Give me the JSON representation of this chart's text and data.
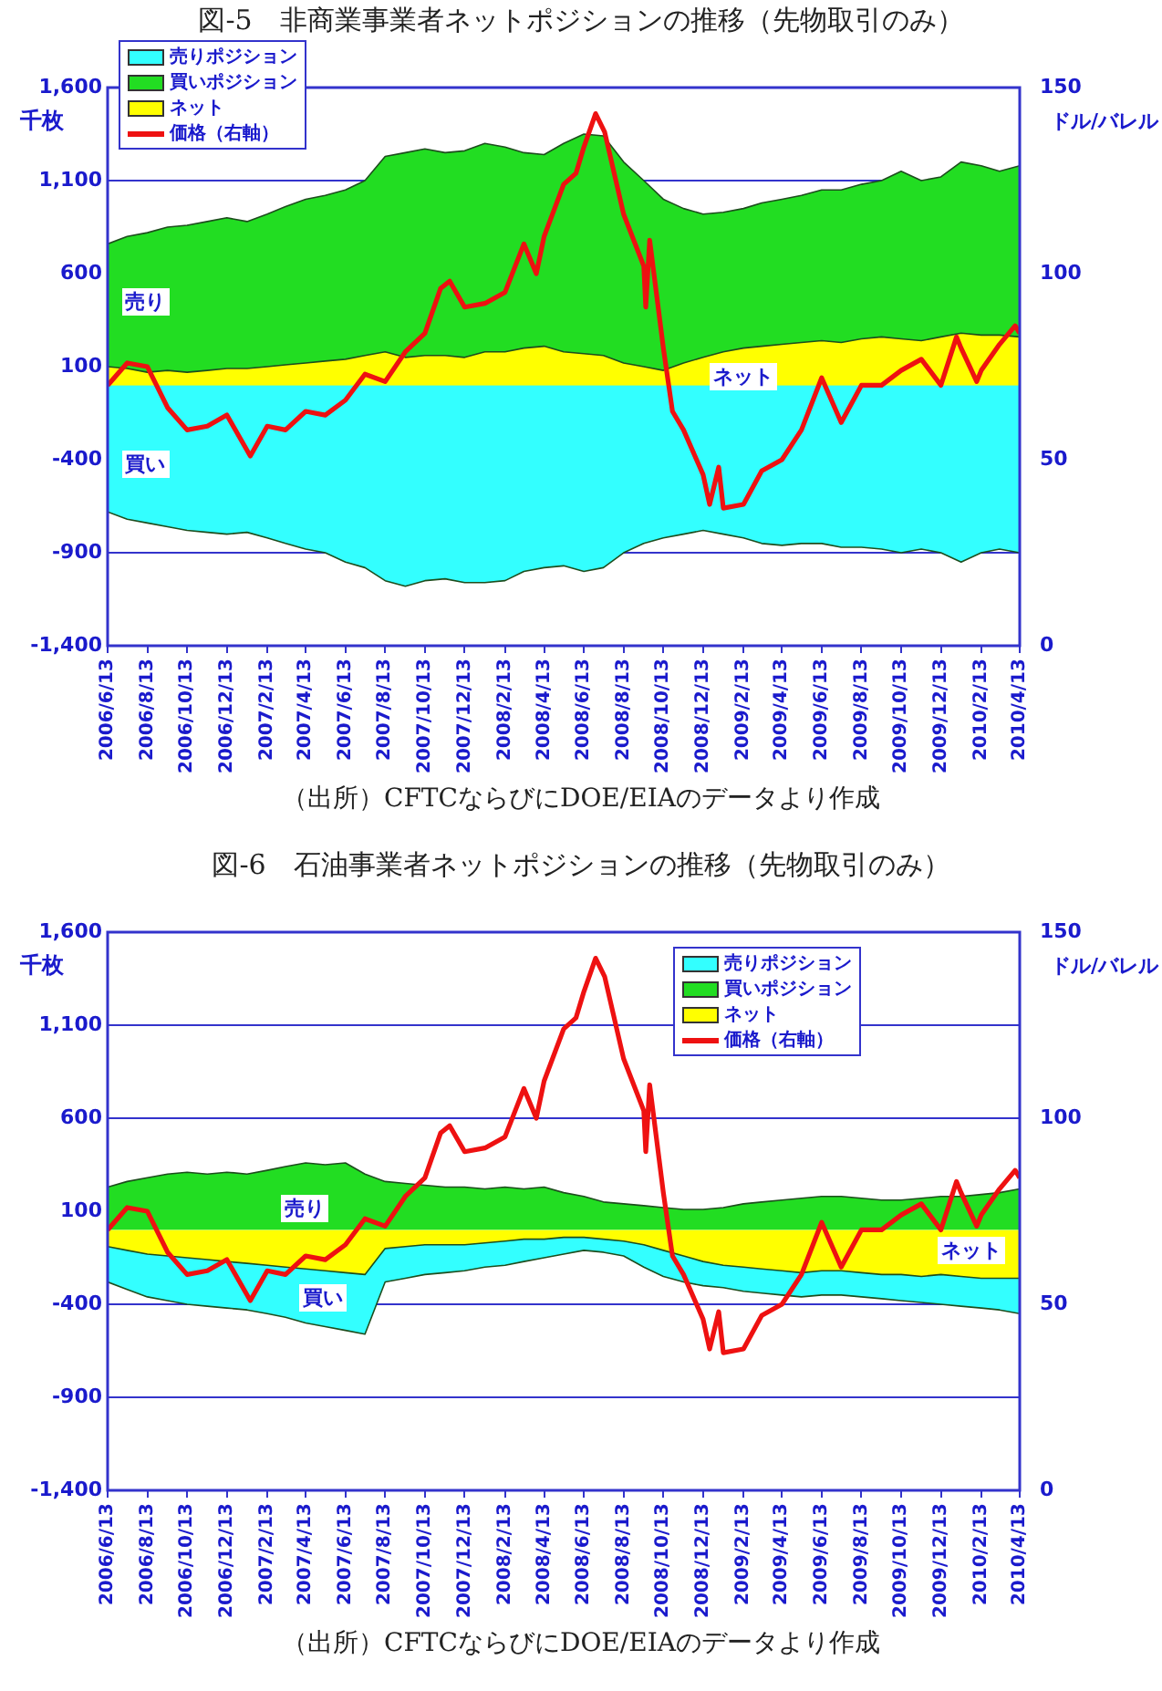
{
  "chart_data": [
    {
      "type": "area",
      "title": "図-5　非商業事業者ネットポジションの推移（先物取引のみ）",
      "ylabel": "千枚",
      "y2label": "ドル/バレル",
      "x": [
        "2006-06-13",
        "2006-07-13",
        "2006-08-13",
        "2006-09-13",
        "2006-10-13",
        "2006-11-13",
        "2006-12-13",
        "2007-01-13",
        "2007-02-13",
        "2007-03-13",
        "2007-04-13",
        "2007-05-13",
        "2007-06-13",
        "2007-07-13",
        "2007-08-13",
        "2007-09-13",
        "2007-10-13",
        "2007-11-13",
        "2007-12-13",
        "2008-01-13",
        "2008-02-13",
        "2008-03-13",
        "2008-04-13",
        "2008-05-13",
        "2008-06-13",
        "2008-07-13",
        "2008-08-13",
        "2008-09-13",
        "2008-10-13",
        "2008-11-13",
        "2008-12-13",
        "2009-01-13",
        "2009-02-13",
        "2009-03-13",
        "2009-04-13",
        "2009-05-13",
        "2009-06-13",
        "2009-07-13",
        "2009-08-13",
        "2009-09-13",
        "2009-10-13",
        "2009-11-13",
        "2009-12-13",
        "2010-01-13",
        "2010-02-13",
        "2010-03-13",
        "2010-04-13"
      ],
      "series": [
        {
          "name": "買いポジション",
          "color": "#22dd22",
          "values": [
            760,
            800,
            820,
            850,
            860,
            880,
            900,
            880,
            920,
            960,
            1000,
            1020,
            1050,
            1100,
            1230,
            1250,
            1270,
            1250,
            1260,
            1300,
            1280,
            1250,
            1240,
            1300,
            1350,
            1340,
            1200,
            1100,
            1000,
            950,
            920,
            930,
            950,
            980,
            1000,
            1020,
            1050,
            1050,
            1080,
            1100,
            1150,
            1100,
            1120,
            1200,
            1180,
            1150,
            1180
          ]
        },
        {
          "name": "売りポジション",
          "color": "#33ffff",
          "values": [
            -680,
            -720,
            -740,
            -760,
            -780,
            -790,
            -800,
            -790,
            -820,
            -850,
            -880,
            -900,
            -950,
            -980,
            -1050,
            -1080,
            -1050,
            -1040,
            -1060,
            -1060,
            -1050,
            -1000,
            -980,
            -970,
            -1000,
            -980,
            -900,
            -850,
            -820,
            -800,
            -780,
            -800,
            -820,
            -850,
            -860,
            -850,
            -850,
            -870,
            -870,
            -880,
            -900,
            -880,
            -900,
            -950,
            -900,
            -880,
            -900
          ]
        },
        {
          "name": "ネット",
          "color": "#ffff00",
          "values": [
            100,
            90,
            70,
            80,
            70,
            80,
            90,
            90,
            100,
            110,
            120,
            130,
            140,
            160,
            180,
            150,
            160,
            160,
            150,
            180,
            180,
            200,
            210,
            180,
            170,
            160,
            120,
            100,
            80,
            120,
            150,
            180,
            200,
            210,
            220,
            230,
            240,
            230,
            250,
            260,
            250,
            240,
            260,
            280,
            270,
            270,
            260
          ]
        },
        {
          "name": "価格（右軸）",
          "type": "line",
          "axis": "y2",
          "color": "#ee1111",
          "x": [
            "2006-06-13",
            "2006-07-13",
            "2006-08-13",
            "2006-09-13",
            "2006-10-13",
            "2006-11-13",
            "2006-12-13",
            "2007-01-18",
            "2007-02-13",
            "2007-03-13",
            "2007-04-13",
            "2007-05-13",
            "2007-06-13",
            "2007-07-13",
            "2007-08-13",
            "2007-09-13",
            "2007-10-13",
            "2007-11-06",
            "2007-11-20",
            "2007-12-13",
            "2008-01-13",
            "2008-02-13",
            "2008-03-13",
            "2008-04-01",
            "2008-04-13",
            "2008-05-13",
            "2008-06-01",
            "2008-06-13",
            "2008-07-01",
            "2008-07-15",
            "2008-08-13",
            "2008-09-13",
            "2008-09-16",
            "2008-09-22",
            "2008-10-13",
            "2008-10-27",
            "2008-11-13",
            "2008-12-13",
            "2008-12-23",
            "2009-01-06",
            "2009-01-13",
            "2009-02-13",
            "2009-03-13",
            "2009-04-13",
            "2009-05-13",
            "2009-06-13",
            "2009-07-13",
            "2009-08-13",
            "2009-09-13",
            "2009-10-13",
            "2009-11-13",
            "2009-12-13",
            "2010-01-06",
            "2010-01-13",
            "2010-02-06",
            "2010-02-13",
            "2010-03-13",
            "2010-04-06",
            "2010-04-13"
          ],
          "values": [
            70,
            76,
            75,
            64,
            58,
            59,
            62,
            51,
            59,
            58,
            63,
            62,
            66,
            73,
            71,
            79,
            84,
            96,
            98,
            91,
            92,
            95,
            108,
            100,
            110,
            124,
            127,
            134,
            143,
            138,
            116,
            102,
            91,
            109,
            80,
            63,
            58,
            46,
            38,
            48,
            37,
            38,
            47,
            50,
            58,
            72,
            60,
            70,
            70,
            74,
            77,
            70,
            83,
            80,
            71,
            74,
            81,
            86,
            84
          ]
        }
      ],
      "xlim": [
        "2006-06-13",
        "2010-04-13"
      ],
      "xticks": [
        {
          "value": "2006-06-13",
          "label": "2006/6/13"
        },
        {
          "value": "2006-08-13",
          "label": "2006/8/13"
        },
        {
          "value": "2006-10-13",
          "label": "2006/10/13"
        },
        {
          "value": "2006-12-13",
          "label": "2006/12/13"
        },
        {
          "value": "2007-02-13",
          "label": "2007/2/13"
        },
        {
          "value": "2007-04-13",
          "label": "2007/4/13"
        },
        {
          "value": "2007-06-13",
          "label": "2007/6/13"
        },
        {
          "value": "2007-08-13",
          "label": "2007/8/13"
        },
        {
          "value": "2007-10-13",
          "label": "2007/10/13"
        },
        {
          "value": "2007-12-13",
          "label": "2007/12/13"
        },
        {
          "value": "2008-02-13",
          "label": "2008/2/13"
        },
        {
          "value": "2008-04-13",
          "label": "2008/4/13"
        },
        {
          "value": "2008-06-13",
          "label": "2008/6/13"
        },
        {
          "value": "2008-08-13",
          "label": "2008/8/13"
        },
        {
          "value": "2008-10-13",
          "label": "2008/10/13"
        },
        {
          "value": "2008-12-13",
          "label": "2008/12/13"
        },
        {
          "value": "2009-02-13",
          "label": "2009/2/13"
        },
        {
          "value": "2009-04-13",
          "label": "2009/4/13"
        },
        {
          "value": "2009-06-13",
          "label": "2009/6/13"
        },
        {
          "value": "2009-08-13",
          "label": "2009/8/13"
        },
        {
          "value": "2009-10-13",
          "label": "2009/10/13"
        },
        {
          "value": "2009-12-13",
          "label": "2009/12/13"
        },
        {
          "value": "2010-02-13",
          "label": "2010/2/13"
        },
        {
          "value": "2010-04-13",
          "label": "2010/4/13"
        }
      ],
      "ylim": [
        -1400,
        1600
      ],
      "yticks": [
        {
          "value": -1400,
          "label": "-1,400"
        },
        {
          "value": -900,
          "label": "-900"
        },
        {
          "value": -400,
          "label": "-400"
        },
        {
          "value": 100,
          "label": "100"
        },
        {
          "value": 600,
          "label": "600"
        },
        {
          "value": 1100,
          "label": "1,100"
        },
        {
          "value": 1600,
          "label": "1,600"
        }
      ],
      "y2lim": [
        0,
        150
      ],
      "y2ticks": [
        0,
        50,
        100,
        150
      ],
      "grid": "y",
      "legend": "top left",
      "marker": "none",
      "line_style": "solid",
      "annotations": [
        "売り",
        "買い",
        "ネット",
        "（出所）CFTCならびにDOE/EIAのデータより作成"
      ]
    },
    {
      "type": "area",
      "title": "図-6　石油事業者ネットポジションの推移（先物取引のみ）",
      "ylabel": "千枚",
      "y2label": "ドル/バレル",
      "x": [
        "2006-06-13",
        "2006-07-13",
        "2006-08-13",
        "2006-09-13",
        "2006-10-13",
        "2006-11-13",
        "2006-12-13",
        "2007-01-13",
        "2007-02-13",
        "2007-03-13",
        "2007-04-13",
        "2007-05-13",
        "2007-06-13",
        "2007-07-13",
        "2007-08-13",
        "2007-09-13",
        "2007-10-13",
        "2007-11-13",
        "2007-12-13",
        "2008-01-13",
        "2008-02-13",
        "2008-03-13",
        "2008-04-13",
        "2008-05-13",
        "2008-06-13",
        "2008-07-13",
        "2008-08-13",
        "2008-09-13",
        "2008-10-13",
        "2008-11-13",
        "2008-12-13",
        "2009-01-13",
        "2009-02-13",
        "2009-03-13",
        "2009-04-13",
        "2009-05-13",
        "2009-06-13",
        "2009-07-13",
        "2009-08-13",
        "2009-09-13",
        "2009-10-13",
        "2009-11-13",
        "2009-12-13",
        "2010-01-13",
        "2010-02-13",
        "2010-03-13",
        "2010-04-13"
      ],
      "series": [
        {
          "name": "買いポジション",
          "color": "#22dd22",
          "values": [
            230,
            260,
            280,
            300,
            310,
            300,
            310,
            300,
            320,
            340,
            360,
            350,
            360,
            300,
            260,
            250,
            240,
            230,
            230,
            220,
            230,
            220,
            230,
            200,
            180,
            150,
            140,
            130,
            120,
            110,
            110,
            120,
            140,
            150,
            160,
            170,
            180,
            180,
            170,
            160,
            160,
            170,
            180,
            180,
            190,
            200,
            220
          ]
        },
        {
          "name": "売りポジション",
          "color": "#33ffff",
          "values": [
            -280,
            -320,
            -360,
            -380,
            -400,
            -410,
            -420,
            -430,
            -450,
            -470,
            -500,
            -520,
            -540,
            -560,
            -280,
            -260,
            -240,
            -230,
            -220,
            -200,
            -190,
            -170,
            -150,
            -130,
            -110,
            -120,
            -140,
            -200,
            -250,
            -280,
            -300,
            -310,
            -330,
            -340,
            -350,
            -360,
            -350,
            -350,
            -360,
            -370,
            -380,
            -390,
            -400,
            -410,
            -420,
            -430,
            -450
          ]
        },
        {
          "name": "ネット",
          "color": "#ffff00",
          "values": [
            -90,
            -110,
            -130,
            -140,
            -150,
            -160,
            -170,
            -180,
            -190,
            -200,
            -210,
            -220,
            -230,
            -240,
            -100,
            -90,
            -80,
            -80,
            -80,
            -70,
            -60,
            -50,
            -50,
            -40,
            -40,
            -50,
            -60,
            -80,
            -110,
            -140,
            -170,
            -190,
            -200,
            -210,
            -220,
            -230,
            -220,
            -220,
            -230,
            -240,
            -240,
            -250,
            -240,
            -250,
            -260,
            -260,
            -260
          ]
        },
        {
          "name": "価格（右軸）",
          "type": "line",
          "axis": "y2",
          "color": "#ee1111",
          "x": [
            "2006-06-13",
            "2006-07-13",
            "2006-08-13",
            "2006-09-13",
            "2006-10-13",
            "2006-11-13",
            "2006-12-13",
            "2007-01-18",
            "2007-02-13",
            "2007-03-13",
            "2007-04-13",
            "2007-05-13",
            "2007-06-13",
            "2007-07-13",
            "2007-08-13",
            "2007-09-13",
            "2007-10-13",
            "2007-11-06",
            "2007-11-20",
            "2007-12-13",
            "2008-01-13",
            "2008-02-13",
            "2008-03-13",
            "2008-04-01",
            "2008-04-13",
            "2008-05-13",
            "2008-06-01",
            "2008-06-13",
            "2008-07-01",
            "2008-07-15",
            "2008-08-13",
            "2008-09-13",
            "2008-09-16",
            "2008-09-22",
            "2008-10-13",
            "2008-10-27",
            "2008-11-13",
            "2008-12-13",
            "2008-12-23",
            "2009-01-06",
            "2009-01-13",
            "2009-02-13",
            "2009-03-13",
            "2009-04-13",
            "2009-05-13",
            "2009-06-13",
            "2009-07-13",
            "2009-08-13",
            "2009-09-13",
            "2009-10-13",
            "2009-11-13",
            "2009-12-13",
            "2010-01-06",
            "2010-01-13",
            "2010-02-06",
            "2010-02-13",
            "2010-03-13",
            "2010-04-06",
            "2010-04-13"
          ],
          "values": [
            70,
            76,
            75,
            64,
            58,
            59,
            62,
            51,
            59,
            58,
            63,
            62,
            66,
            73,
            71,
            79,
            84,
            96,
            98,
            91,
            92,
            95,
            108,
            100,
            110,
            124,
            127,
            134,
            143,
            138,
            116,
            102,
            91,
            109,
            80,
            63,
            58,
            46,
            38,
            48,
            37,
            38,
            47,
            50,
            58,
            72,
            60,
            70,
            70,
            74,
            77,
            70,
            83,
            80,
            71,
            74,
            81,
            86,
            84
          ]
        }
      ],
      "xlim": [
        "2006-06-13",
        "2010-04-13"
      ],
      "xticks": [
        {
          "value": "2006-06-13",
          "label": "2006/6/13"
        },
        {
          "value": "2006-08-13",
          "label": "2006/8/13"
        },
        {
          "value": "2006-10-13",
          "label": "2006/10/13"
        },
        {
          "value": "2006-12-13",
          "label": "2006/12/13"
        },
        {
          "value": "2007-02-13",
          "label": "2007/2/13"
        },
        {
          "value": "2007-04-13",
          "label": "2007/4/13"
        },
        {
          "value": "2007-06-13",
          "label": "2007/6/13"
        },
        {
          "value": "2007-08-13",
          "label": "2007/8/13"
        },
        {
          "value": "2007-10-13",
          "label": "2007/10/13"
        },
        {
          "value": "2007-12-13",
          "label": "2007/12/13"
        },
        {
          "value": "2008-02-13",
          "label": "2008/2/13"
        },
        {
          "value": "2008-04-13",
          "label": "2008/4/13"
        },
        {
          "value": "2008-06-13",
          "label": "2008/6/13"
        },
        {
          "value": "2008-08-13",
          "label": "2008/8/13"
        },
        {
          "value": "2008-10-13",
          "label": "2008/10/13"
        },
        {
          "value": "2008-12-13",
          "label": "2008/12/13"
        },
        {
          "value": "2009-02-13",
          "label": "2009/2/13"
        },
        {
          "value": "2009-04-13",
          "label": "2009/4/13"
        },
        {
          "value": "2009-06-13",
          "label": "2009/6/13"
        },
        {
          "value": "2009-08-13",
          "label": "2009/8/13"
        },
        {
          "value": "2009-10-13",
          "label": "2009/10/13"
        },
        {
          "value": "2009-12-13",
          "label": "2009/12/13"
        },
        {
          "value": "2010-02-13",
          "label": "2010/2/13"
        },
        {
          "value": "2010-04-13",
          "label": "2010/4/13"
        }
      ],
      "ylim": [
        -1400,
        1600
      ],
      "yticks": [
        {
          "value": -1400,
          "label": "-1,400"
        },
        {
          "value": -900,
          "label": "-900"
        },
        {
          "value": -400,
          "label": "-400"
        },
        {
          "value": 100,
          "label": "100"
        },
        {
          "value": 600,
          "label": "600"
        },
        {
          "value": 1100,
          "label": "1,100"
        },
        {
          "value": 1600,
          "label": "1,600"
        }
      ],
      "y2lim": [
        0,
        150
      ],
      "y2ticks": [
        0,
        50,
        100,
        150
      ],
      "grid": "y",
      "legend": "top right",
      "marker": "none",
      "line_style": "solid",
      "annotations": [
        "売り",
        "買い",
        "ネット",
        "（出所）CFTCならびにDOE/EIAのデータより作成"
      ]
    }
  ]
}
